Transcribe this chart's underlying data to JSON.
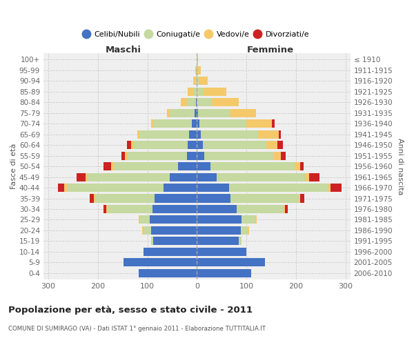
{
  "age_groups": [
    "0-4",
    "5-9",
    "10-14",
    "15-19",
    "20-24",
    "25-29",
    "30-34",
    "35-39",
    "40-44",
    "45-49",
    "50-54",
    "55-59",
    "60-64",
    "65-69",
    "70-74",
    "75-79",
    "80-84",
    "85-89",
    "90-94",
    "95-99",
    "100+"
  ],
  "birth_years": [
    "2006-2010",
    "2001-2005",
    "1996-2000",
    "1991-1995",
    "1986-1990",
    "1981-1985",
    "1976-1980",
    "1971-1975",
    "1966-1970",
    "1961-1965",
    "1956-1960",
    "1951-1955",
    "1946-1950",
    "1941-1945",
    "1936-1940",
    "1931-1935",
    "1926-1930",
    "1921-1925",
    "1916-1920",
    "1911-1915",
    "≤ 1910"
  ],
  "colors": {
    "celibe": "#4472C4",
    "coniugato": "#C5D9A0",
    "vedovo": "#F5C96A",
    "divorziato": "#CC2222"
  },
  "maschi": {
    "celibe": [
      118,
      148,
      108,
      88,
      92,
      95,
      90,
      85,
      68,
      55,
      38,
      20,
      18,
      16,
      10,
      5,
      2,
      0,
      0,
      0,
      0
    ],
    "coniugato": [
      0,
      0,
      0,
      5,
      15,
      20,
      90,
      120,
      195,
      165,
      130,
      120,
      110,
      100,
      78,
      50,
      18,
      6,
      2,
      1,
      0
    ],
    "vedovo": [
      0,
      0,
      0,
      0,
      3,
      3,
      3,
      3,
      5,
      5,
      5,
      5,
      5,
      5,
      5,
      5,
      12,
      12,
      5,
      2,
      0
    ],
    "divorziato": [
      0,
      0,
      0,
      0,
      0,
      0,
      5,
      8,
      12,
      18,
      15,
      8,
      8,
      0,
      0,
      0,
      0,
      0,
      0,
      0,
      0
    ]
  },
  "femmine": {
    "nubile": [
      110,
      138,
      100,
      85,
      88,
      90,
      80,
      68,
      65,
      40,
      28,
      15,
      12,
      8,
      5,
      2,
      0,
      0,
      0,
      0,
      0
    ],
    "coniugata": [
      0,
      0,
      0,
      5,
      15,
      28,
      95,
      138,
      200,
      178,
      170,
      140,
      128,
      115,
      95,
      65,
      30,
      12,
      4,
      2,
      0
    ],
    "vedova": [
      0,
      0,
      0,
      0,
      3,
      3,
      3,
      3,
      5,
      8,
      10,
      14,
      22,
      42,
      52,
      52,
      55,
      48,
      18,
      6,
      2
    ],
    "divorziata": [
      0,
      0,
      0,
      0,
      0,
      0,
      5,
      8,
      22,
      22,
      8,
      10,
      12,
      5,
      5,
      0,
      0,
      0,
      0,
      0,
      0
    ]
  },
  "xlim": 310,
  "title": "Popolazione per età, sesso e stato civile - 2011",
  "subtitle": "COMUNE DI SUMIRAGO (VA) - Dati ISTAT 1° gennaio 2011 - Elaborazione TUTTITALIA.IT",
  "ylabel_left": "Fasce di età",
  "ylabel_right": "Anni di nascita",
  "xlabel_maschi": "Maschi",
  "xlabel_femmine": "Femmine",
  "bg_color": "#ffffff",
  "plot_bg_color": "#efefef",
  "grid_color": "#cccccc",
  "legend_labels": [
    "Celibi/Nubili",
    "Coniugati/e",
    "Vedovi/e",
    "Divorziati/e"
  ]
}
